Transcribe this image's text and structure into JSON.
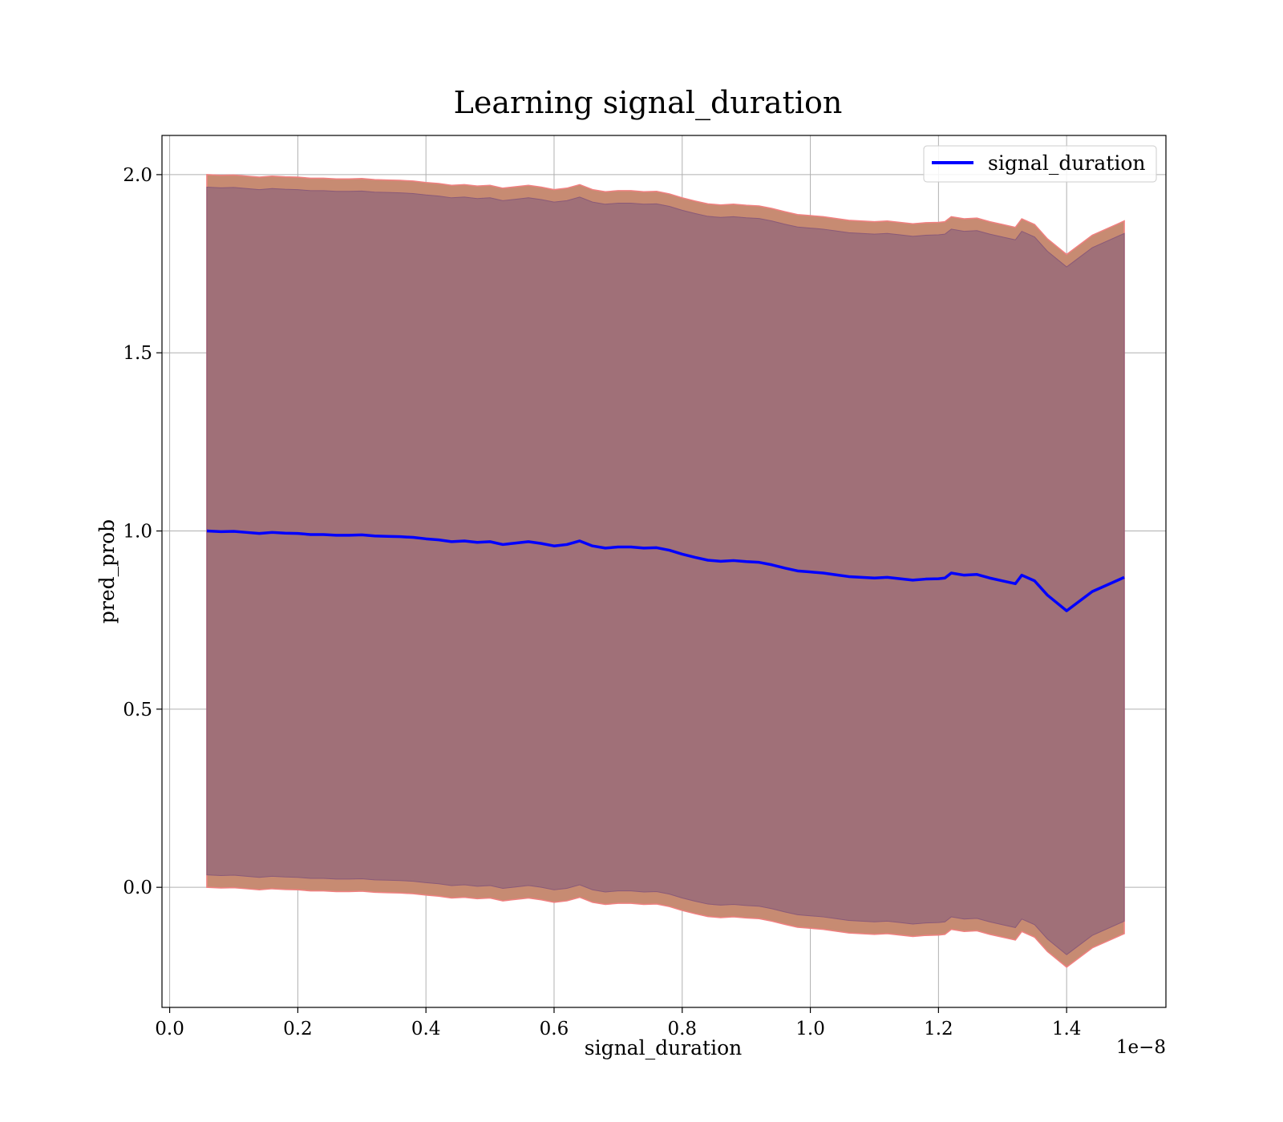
{
  "chart_data": {
    "type": "line",
    "title": "Learning signal_duration",
    "xlabel": "signal_duration",
    "ylabel": "pred_prob",
    "x_offset_label": "1e−8",
    "xlim": [
      -0.012,
      1.555
    ],
    "ylim": [
      -0.337,
      2.11
    ],
    "xticks": [
      0.0,
      0.2,
      0.4,
      0.6,
      0.8,
      1.0,
      1.2,
      1.4
    ],
    "xtick_labels": [
      "0.0",
      "0.2",
      "0.4",
      "0.6",
      "0.8",
      "1.0",
      "1.2",
      "1.4"
    ],
    "yticks": [
      0.0,
      0.5,
      1.0,
      1.5,
      2.0
    ],
    "ytick_labels": [
      "0.0",
      "0.5",
      "1.0",
      "1.5",
      "2.0"
    ],
    "grid": true,
    "legend_position": "top-right",
    "colors": {
      "line": "#0000ff",
      "band_outer": "#c78b72",
      "band_outer_edge": "#f08080",
      "band_inner": "#a07078",
      "grid": "#b0b0b0"
    },
    "series": [
      {
        "name": "signal_duration",
        "x": [
          0.058,
          0.08,
          0.1,
          0.12,
          0.14,
          0.16,
          0.18,
          0.2,
          0.22,
          0.24,
          0.26,
          0.28,
          0.3,
          0.32,
          0.34,
          0.36,
          0.38,
          0.4,
          0.42,
          0.44,
          0.46,
          0.48,
          0.5,
          0.52,
          0.54,
          0.56,
          0.58,
          0.6,
          0.62,
          0.64,
          0.66,
          0.68,
          0.7,
          0.72,
          0.74,
          0.76,
          0.78,
          0.8,
          0.82,
          0.84,
          0.86,
          0.88,
          0.9,
          0.92,
          0.94,
          0.96,
          0.98,
          1.0,
          1.02,
          1.04,
          1.06,
          1.08,
          1.1,
          1.12,
          1.14,
          1.16,
          1.18,
          1.2,
          1.21,
          1.22,
          1.24,
          1.26,
          1.28,
          1.3,
          1.32,
          1.33,
          1.35,
          1.37,
          1.4,
          1.44,
          1.49
        ],
        "y": [
          1.0,
          0.998,
          0.999,
          0.996,
          0.993,
          0.996,
          0.994,
          0.993,
          0.99,
          0.99,
          0.988,
          0.988,
          0.989,
          0.986,
          0.985,
          0.984,
          0.982,
          0.978,
          0.975,
          0.97,
          0.972,
          0.968,
          0.97,
          0.962,
          0.966,
          0.97,
          0.965,
          0.958,
          0.962,
          0.972,
          0.958,
          0.952,
          0.955,
          0.955,
          0.952,
          0.953,
          0.946,
          0.935,
          0.926,
          0.918,
          0.915,
          0.917,
          0.914,
          0.912,
          0.905,
          0.896,
          0.888,
          0.885,
          0.882,
          0.877,
          0.872,
          0.87,
          0.868,
          0.87,
          0.866,
          0.862,
          0.865,
          0.866,
          0.868,
          0.882,
          0.876,
          0.878,
          0.868,
          0.86,
          0.852,
          0.876,
          0.86,
          0.82,
          0.776,
          0.83,
          0.87
        ],
        "band_outer_half_width": 1.0,
        "band_inner_half_width": 0.965
      }
    ]
  }
}
